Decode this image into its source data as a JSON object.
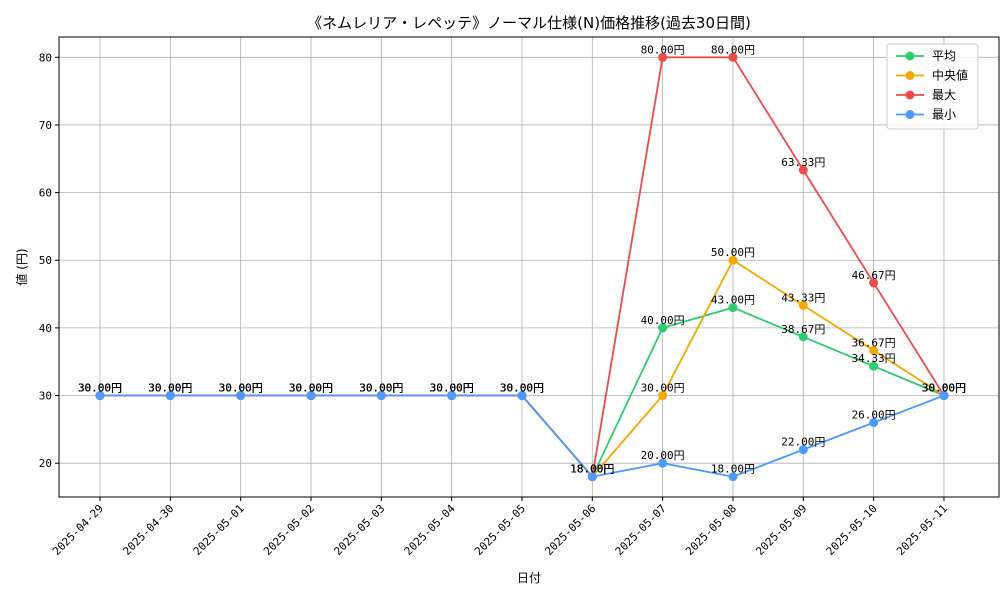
{
  "chart_data": {
    "type": "line",
    "title": "《ネムレリア・レペッテ》ノーマル仕様(N)価格推移(過去30日間)",
    "xlabel": "日付",
    "ylabel": "値 (円)",
    "ylim": [
      15,
      83
    ],
    "yticks": [
      20,
      30,
      40,
      50,
      60,
      70,
      80
    ],
    "grid": true,
    "legend_position": "top-right",
    "value_suffix": "円",
    "categories": [
      "2025-04-29",
      "2025-04-30",
      "2025-05-01",
      "2025-05-02",
      "2025-05-03",
      "2025-05-04",
      "2025-05-05",
      "2025-05-06",
      "2025-05-07",
      "2025-05-08",
      "2025-05-09",
      "2025-05-10",
      "2025-05-11"
    ],
    "series": [
      {
        "name": "平均",
        "color": "#2ecc71",
        "values": [
          30,
          30,
          30,
          30,
          30,
          30,
          30,
          18,
          40,
          43,
          38.67,
          34.33,
          30
        ]
      },
      {
        "name": "中央値",
        "color": "#f5a800",
        "values": [
          30,
          30,
          30,
          30,
          30,
          30,
          30,
          18,
          30,
          50,
          43.33,
          36.67,
          30
        ]
      },
      {
        "name": "最大",
        "color": "#f04b4b",
        "values": [
          30,
          30,
          30,
          30,
          30,
          30,
          30,
          18,
          80,
          80,
          63.33,
          46.67,
          30
        ]
      },
      {
        "name": "最小",
        "color": "#4c9aff",
        "values": [
          30,
          30,
          30,
          30,
          30,
          30,
          30,
          18,
          20,
          18,
          22,
          26,
          30
        ]
      }
    ]
  }
}
